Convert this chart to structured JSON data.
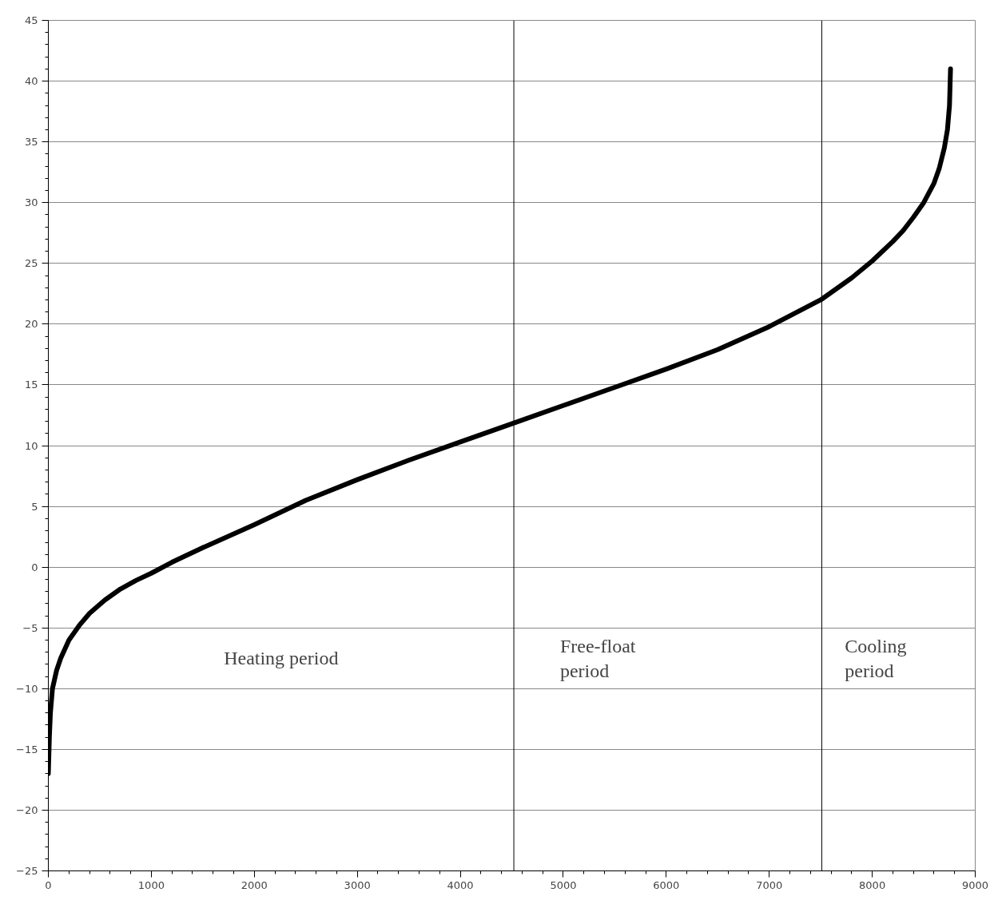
{
  "chart_data": {
    "type": "line",
    "x": [
      0,
      10,
      20,
      40,
      80,
      120,
      200,
      300,
      400,
      550,
      700,
      850,
      1000,
      1200,
      1500,
      2000,
      2500,
      3000,
      3500,
      4000,
      4500,
      5000,
      5500,
      6000,
      6500,
      7000,
      7500,
      7800,
      8000,
      8200,
      8300,
      8400,
      8500,
      8600,
      8650,
      8700,
      8730,
      8750,
      8760
    ],
    "series": [
      {
        "color": "#000000",
        "values": [
          -17,
          -14,
          -12,
          -10,
          -8.5,
          -7.5,
          -6,
          -4.8,
          -3.8,
          -2.7,
          -1.8,
          -1.1,
          -0.5,
          0.4,
          1.6,
          3.5,
          5.5,
          7.2,
          8.8,
          10.3,
          11.8,
          13.3,
          14.8,
          16.3,
          17.9,
          19.8,
          22,
          23.8,
          25.2,
          26.8,
          27.7,
          28.8,
          30,
          31.6,
          32.8,
          34.5,
          36,
          38,
          41
        ]
      }
    ],
    "xlim": [
      0,
      9000
    ],
    "xticks": [
      0,
      1000,
      2000,
      3000,
      4000,
      5000,
      6000,
      7000,
      8000,
      9000
    ],
    "ylim": [
      -25,
      45
    ],
    "yticks": [
      -25,
      -20,
      -15,
      -10,
      -5,
      0,
      5,
      10,
      15,
      20,
      25,
      30,
      35,
      40,
      45
    ],
    "grid": "y",
    "marker": "none",
    "line_style": "solid",
    "ref_lines": [
      {
        "axis": "x",
        "value": 4520,
        "color": "#000000"
      },
      {
        "axis": "x",
        "value": 7510,
        "color": "#000000"
      }
    ],
    "annotations": [
      "Heating period",
      "Free-float\nperiod",
      "Cooling\nperiod"
    ]
  }
}
